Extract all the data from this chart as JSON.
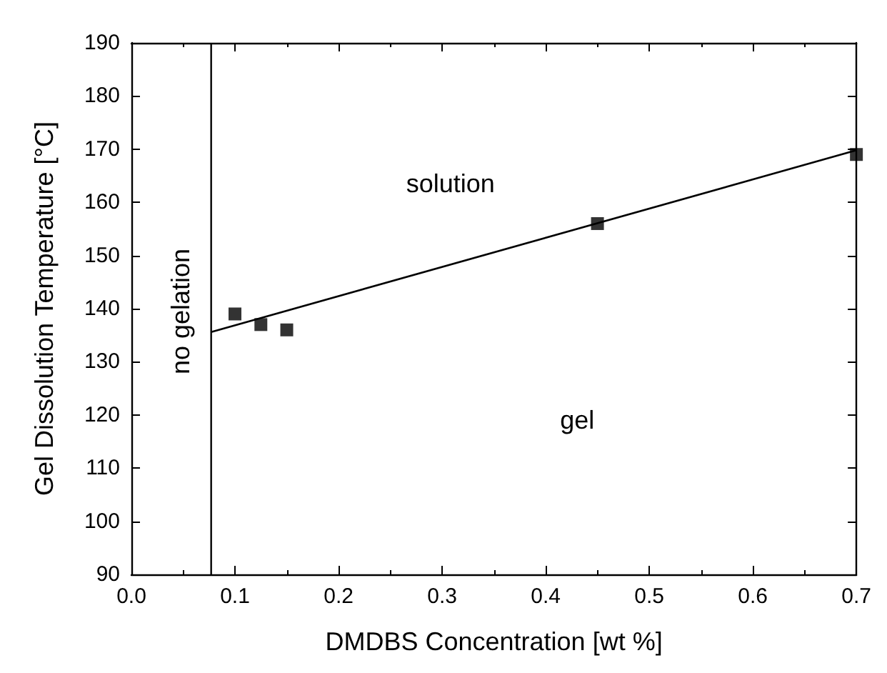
{
  "chart_data": {
    "type": "scatter",
    "xlabel": "DMDBS Concentration [wt %]",
    "ylabel": "Gel Dissolution Temperature [°C]",
    "x": [
      0.1,
      0.125,
      0.15,
      0.45,
      0.7
    ],
    "series": [
      {
        "color": "#000000",
        "marker": "square",
        "values": [
          139,
          137,
          136,
          156,
          169
        ]
      },
      {
        "type": "line",
        "color": "#000000",
        "marker": "none",
        "x": [
          0.077,
          0.7
        ],
        "values": [
          135.6,
          169.8
        ]
      }
    ],
    "xlim": [
      0,
      0.7
    ],
    "ylim": [
      90,
      190
    ],
    "xticks": [
      {
        "value": 0,
        "label": "0.0"
      },
      {
        "value": 0.1,
        "label": "0.1"
      },
      {
        "value": 0.2,
        "label": "0.2"
      },
      {
        "value": 0.3,
        "label": "0.3"
      },
      {
        "value": 0.4,
        "label": "0.4"
      },
      {
        "value": 0.5,
        "label": "0.5"
      },
      {
        "value": 0.6,
        "label": "0.6"
      },
      {
        "value": 0.7,
        "label": "0.7"
      }
    ],
    "yticks": [
      90,
      100,
      110,
      120,
      130,
      140,
      150,
      160,
      170,
      180,
      190
    ],
    "ref_lines": [
      {
        "axis": "x",
        "value": 0.077,
        "label": "no gelation",
        "color": "#000000"
      }
    ],
    "annotations": [
      "solution",
      "gel"
    ],
    "grid": false
  }
}
